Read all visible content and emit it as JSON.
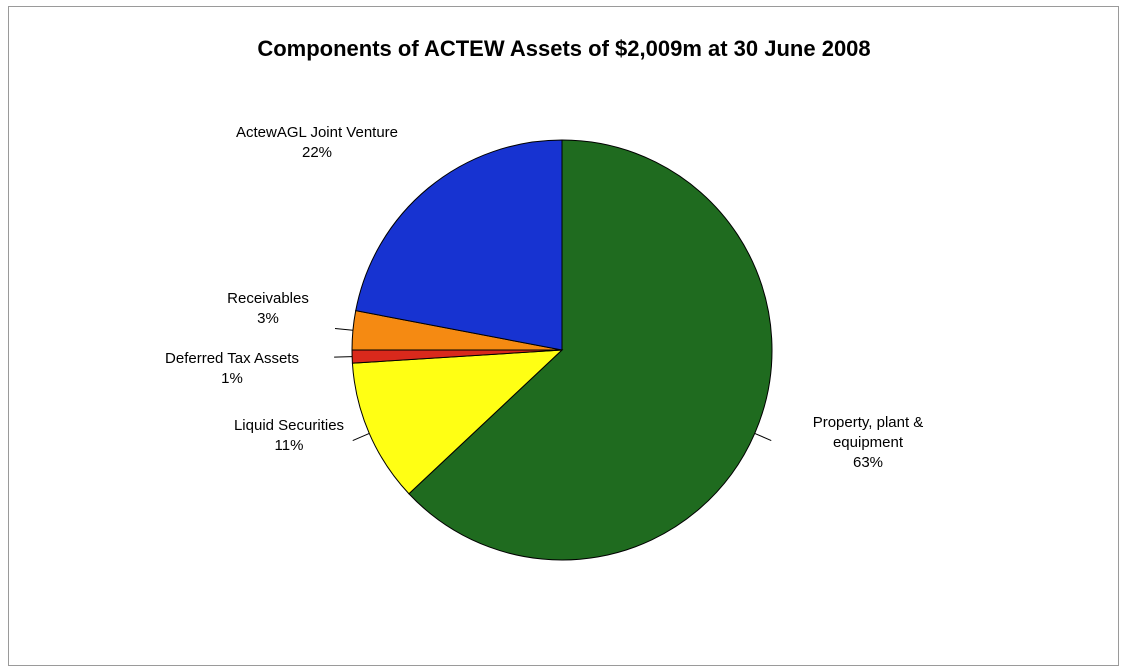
{
  "chart_data": {
    "type": "pie",
    "title": "Components of ACTEW Assets of $2,009m at 30 June 2008",
    "slices": [
      {
        "label": "Property, plant & equipment",
        "label_lines": [
          "Property, plant &",
          "equipment"
        ],
        "value": 63,
        "value_label": "63%",
        "color": "#1f6b1f"
      },
      {
        "label": "Liquid Securities",
        "label_lines": [
          "Liquid Securities"
        ],
        "value": 11,
        "value_label": "11%",
        "color": "#ffff14"
      },
      {
        "label": "Deferred Tax Assets",
        "label_lines": [
          "Deferred Tax Assets"
        ],
        "value": 1,
        "value_label": "1%",
        "color": "#d9291c"
      },
      {
        "label": "Receivables",
        "label_lines": [
          "Receivables"
        ],
        "value": 3,
        "value_label": "3%",
        "color": "#f58a12"
      },
      {
        "label": "ActewAGL Joint Venture",
        "label_lines": [
          "ActewAGL Joint Venture"
        ],
        "value": 22,
        "value_label": "22%",
        "color": "#1733d1"
      }
    ],
    "start_angle": "12 o'clock",
    "direction": "clockwise",
    "legend": "none"
  }
}
